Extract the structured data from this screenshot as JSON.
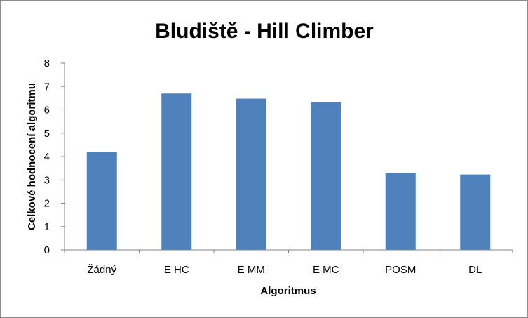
{
  "chart_data": {
    "type": "bar",
    "title": "Bludiště - Hill Climber",
    "xlabel": "Algoritmus",
    "ylabel": "Celkové hodnocení algoritmu",
    "categories": [
      "Žádný",
      "E HC",
      "E MM",
      "E MC",
      "POSM",
      "DL"
    ],
    "values": [
      4.2,
      6.7,
      6.48,
      6.33,
      3.3,
      3.23
    ],
    "ylim": [
      0,
      8
    ],
    "yticks": [
      0,
      1,
      2,
      3,
      4,
      5,
      6,
      7,
      8
    ],
    "grid": false,
    "legend": "none",
    "bar_color": "#4f81bd",
    "axis_color": "#868686"
  }
}
